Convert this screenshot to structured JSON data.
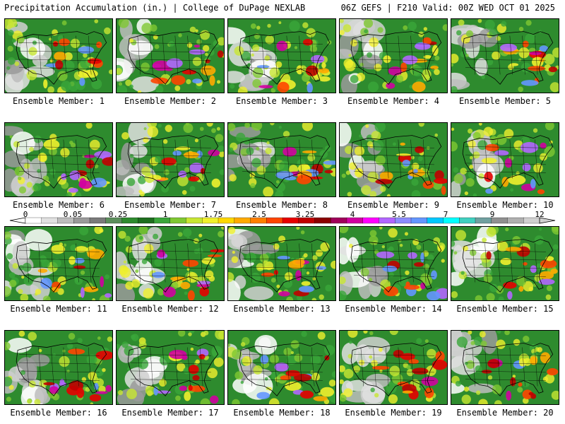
{
  "header": {
    "title": "Precipitation Accumulation (in.) | College of DuPage NEXLAB",
    "run_info": "06Z GEFS | F210 Valid: 00Z WED OCT 01 2025"
  },
  "colorbar": {
    "labels": [
      "0",
      "0.05",
      "0.25",
      "1",
      "1.75",
      "2.5",
      "3.25",
      "4",
      "5.5",
      "7",
      "9",
      "12"
    ],
    "colors": [
      "#ffffff",
      "#e0e0e0",
      "#bdbdbd",
      "#9a9a9a",
      "#7a7a7a",
      "#5c8f5c",
      "#2e8b2e",
      "#1e6e1e",
      "#3aa63a",
      "#7fc832",
      "#c8e632",
      "#f0f02d",
      "#ffd700",
      "#ffaa00",
      "#ff7f00",
      "#ff4500",
      "#e60000",
      "#c00000",
      "#8b0000",
      "#a0005a",
      "#d000a0",
      "#ff00ff",
      "#b266ff",
      "#8c8cff",
      "#6496ff",
      "#00c8ff",
      "#00ffff",
      "#40d0c0",
      "#70a0a0",
      "#909090",
      "#b0b0b0",
      "#d0d0d0"
    ]
  },
  "members": [
    {
      "label": "Ensemble Member: 1"
    },
    {
      "label": "Ensemble Member: 2"
    },
    {
      "label": "Ensemble Member: 3"
    },
    {
      "label": "Ensemble Member: 4"
    },
    {
      "label": "Ensemble Member: 5"
    },
    {
      "label": "Ensemble Member: 6"
    },
    {
      "label": "Ensemble Member: 7"
    },
    {
      "label": "Ensemble Member: 8"
    },
    {
      "label": "Ensemble Member: 9"
    },
    {
      "label": "Ensemble Member: 10"
    },
    {
      "label": "Ensemble Member: 11"
    },
    {
      "label": "Ensemble Member: 12"
    },
    {
      "label": "Ensemble Member: 13"
    },
    {
      "label": "Ensemble Member: 14"
    },
    {
      "label": "Ensemble Member: 15"
    },
    {
      "label": "Ensemble Member: 16"
    },
    {
      "label": "Ensemble Member: 17"
    },
    {
      "label": "Ensemble Member: 18"
    },
    {
      "label": "Ensemble Member: 19"
    },
    {
      "label": "Ensemble Member: 20"
    }
  ]
}
